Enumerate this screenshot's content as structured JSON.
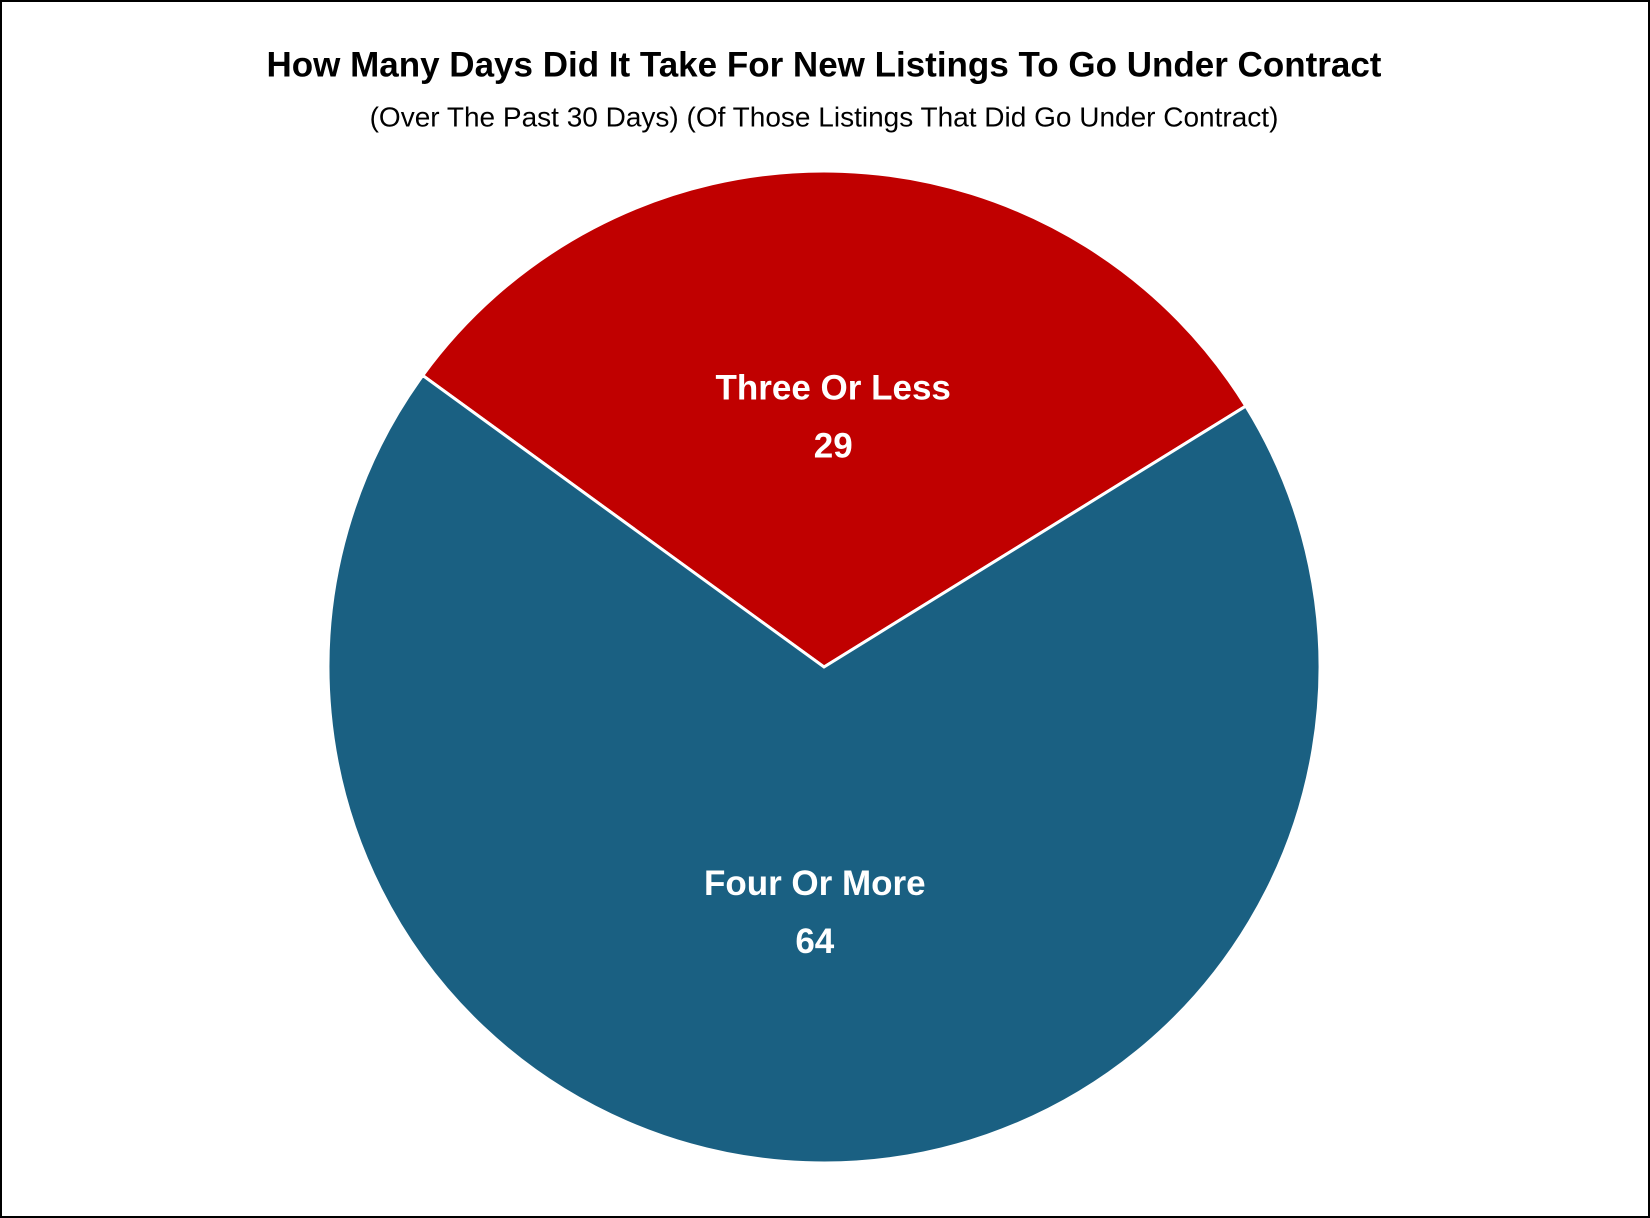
{
  "chart_data": {
    "type": "pie",
    "title": "How Many Days Did It Take For New Listings To Go Under Contract",
    "subtitle": "(Over The Past 30 Days)   (Of Those Listings That Did Go Under Contract)",
    "categories": [
      "Three Or Less",
      "Four Or More"
    ],
    "values": [
      29,
      64
    ],
    "colors": [
      "#c00000",
      "#1a6082"
    ]
  }
}
